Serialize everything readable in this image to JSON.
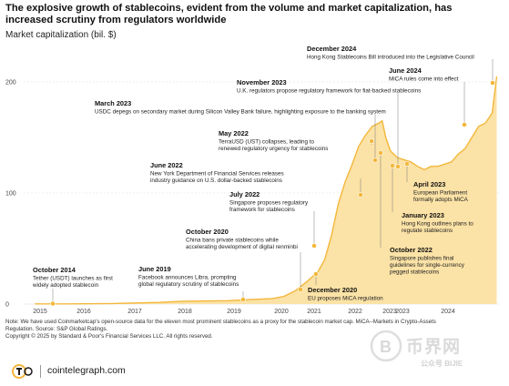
{
  "header": {
    "title": "The explosive growth of stablecoins, evident from the volume and market capitalization, has increased scrutiny from regulators worldwide",
    "subtitle": "Market capitalization (bil. $)"
  },
  "chart_data": {
    "type": "area",
    "ylim": [
      0,
      200
    ],
    "yticks": [
      0,
      100,
      200
    ],
    "xticks": [
      "2015",
      "2016",
      "2017",
      "2018",
      "2019",
      "2020",
      "2021",
      "2022",
      "2023",
      "2023",
      "2024"
    ],
    "accent_color": "#f3b73b",
    "fill_color": "#fbe2a6",
    "series": [
      {
        "x": [
          2014.75,
          2015.5,
          2016.5,
          2017.5,
          2018.0,
          2018.5,
          2019.0,
          2019.5,
          2020.0,
          2020.25,
          2020.5,
          2020.75,
          2021.0,
          2021.15,
          2021.3,
          2021.45,
          2021.6,
          2021.75,
          2021.9,
          2022.05,
          2022.2,
          2022.35,
          2022.42,
          2022.5,
          2022.6,
          2022.75,
          2022.9,
          2023.05,
          2023.2,
          2023.35,
          2023.5,
          2023.65,
          2023.8,
          2023.95,
          2024.1,
          2024.25,
          2024.4,
          2024.55,
          2024.7,
          2024.85,
          2024.95
        ],
        "y": [
          0.2,
          0.2,
          0.5,
          1.5,
          2.5,
          2.8,
          3,
          4,
          5,
          7,
          12,
          20,
          29,
          40,
          62,
          90,
          110,
          125,
          142,
          152,
          160,
          163,
          165,
          150,
          138,
          132,
          130,
          128,
          124,
          121,
          124,
          124,
          126,
          128,
          135,
          140,
          150,
          160,
          163,
          172,
          205
        ]
      }
    ],
    "annotations": [
      {
        "date": "October 2014",
        "text": [
          "Tether (USDT) launches as first",
          "widely adopted stablecoin"
        ]
      },
      {
        "date": "June 2019",
        "text": [
          "Facebook announces Libra, prompting",
          "global regulatory scrutiny of stablecoins"
        ]
      },
      {
        "date": "October 2020",
        "text": [
          "China bans private stablecoins while",
          "accelerating development of digital renminbi"
        ]
      },
      {
        "date": "December 2020",
        "text": [
          "EU proposes MiCA regulation"
        ]
      },
      {
        "date": "July 2022",
        "text": [
          "Singapore proposes regulatory",
          "framework for stablecoins"
        ]
      },
      {
        "date": "June 2022",
        "text": [
          "New York Department of Financial Services releases",
          "industry guidance on U.S. dollar-backed stablecoins"
        ]
      },
      {
        "date": "May 2022",
        "text": [
          "TerraUSD (UST) collapses, leading to",
          "renewed regulatory urgency for stablecoins"
        ]
      },
      {
        "date": "March 2023",
        "text": [
          "USDC depegs on secondary market during Silicon Valley Bank failure, highlighting exposure to the banking system"
        ]
      },
      {
        "date": "November 2023",
        "text": [
          "U.K. regulators propose regulatory framework for fiat-backed stablecoins"
        ]
      },
      {
        "date": "December 2024",
        "text": [
          "Hong Kong Stablecoins Bill introduced into the Legislative Council"
        ]
      },
      {
        "date": "June 2024",
        "text": [
          "MiCA rules come into effect"
        ]
      },
      {
        "date": "April 2023",
        "text": [
          "European Parliament",
          "formally adopts MiCA"
        ]
      },
      {
        "date": "January 2023",
        "text": [
          "Hong Kong outlines plans to",
          "regulate stablecoins"
        ]
      },
      {
        "date": "October 2022",
        "text": [
          "Singapore publishes final",
          "guidelines for single-currency",
          "pegged stablecoins"
        ]
      }
    ]
  },
  "notes": {
    "line1": "Note: We have used Coinmarketcap's open-source data for the eleven most prominent stablecoins as a proxy for the stablecoin market cap. MiCA--Markets in Crypto-Assets",
    "line2": "Regulation. Source: S&P Global Ratings.",
    "line3": "Copyright © 2025 by Standard & Poor's Financial Services LLC. All rights reserved."
  },
  "footer": {
    "brand": "cointelegraph.com",
    "watermark": "币界网",
    "watermark_sub": "公众号 BIJIE"
  }
}
